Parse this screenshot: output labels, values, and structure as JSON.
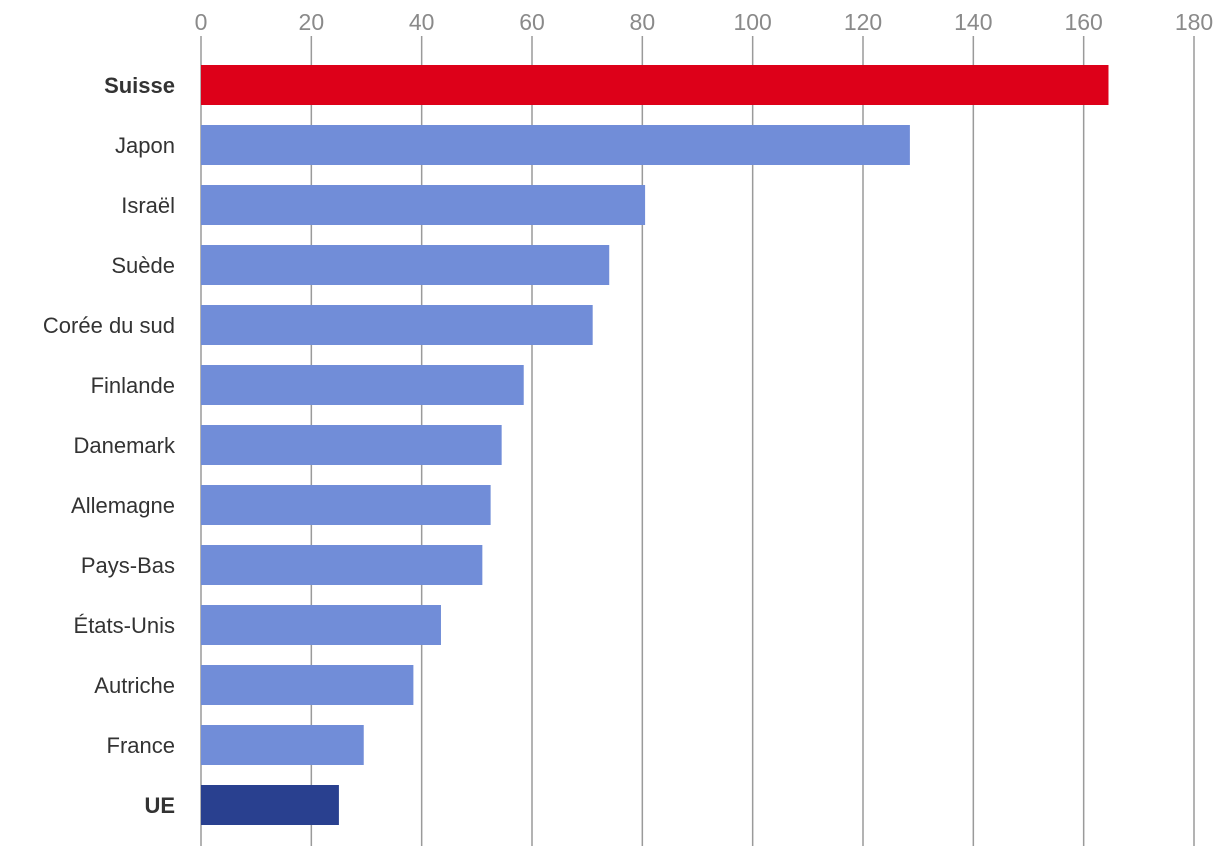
{
  "chart_data": {
    "type": "bar",
    "orientation": "horizontal",
    "title": "",
    "xlabel": "",
    "ylabel": "",
    "xlim": [
      0,
      180
    ],
    "xticks": [
      0,
      20,
      40,
      60,
      80,
      100,
      120,
      140,
      160,
      180
    ],
    "grid": true,
    "categories": [
      "Suisse",
      "Japon",
      "Israël",
      "Suède",
      "Corée du sud",
      "Finlande",
      "Danemark",
      "Allemagne",
      "Pays-Bas",
      "États-Unis",
      "Autriche",
      "France",
      "UE"
    ],
    "values": [
      164.5,
      128.5,
      80.5,
      74,
      71,
      58.5,
      54.5,
      52.5,
      51,
      43.5,
      38.5,
      29.5,
      25
    ],
    "highlight": {
      "Suisse": "#dd0019",
      "UE": "#29408f"
    },
    "bold_categories": [
      "Suisse",
      "UE"
    ],
    "colors": {
      "default_bar": "#718dd8",
      "highlight_bar": "#dd0019",
      "aggregate_bar": "#29408f",
      "grid": "#9a9a9a"
    }
  }
}
